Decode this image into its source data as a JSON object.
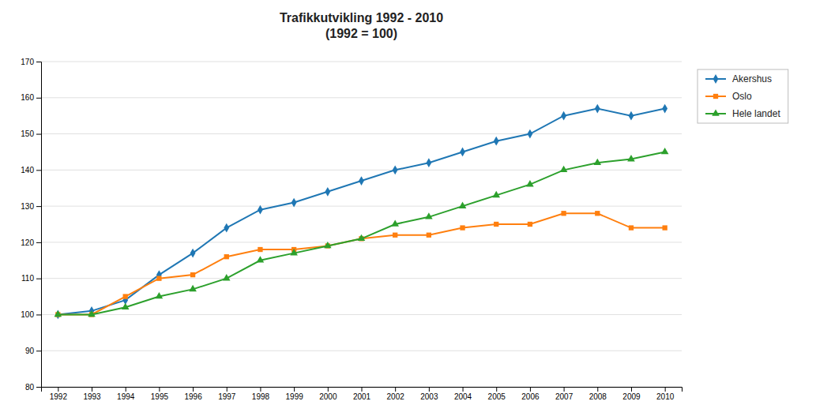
{
  "chart_data": {
    "type": "line",
    "title": "Trafikkutvikling 1992 - 2010\n(1992 = 100)",
    "x": [
      1992,
      1993,
      1994,
      1995,
      1996,
      1997,
      1998,
      1999,
      2000,
      2001,
      2002,
      2003,
      2004,
      2005,
      2006,
      2007,
      2008,
      2009,
      2010
    ],
    "series": [
      {
        "name": "Akershus",
        "marker": "diamond",
        "values": [
          100,
          101,
          104,
          111,
          117,
          124,
          129,
          131,
          134,
          137,
          140,
          142,
          145,
          148,
          150,
          155,
          157,
          155,
          157
        ]
      },
      {
        "name": "Oslo",
        "marker": "square",
        "values": [
          100,
          100,
          105,
          110,
          111,
          116,
          118,
          118,
          119,
          121,
          122,
          122,
          124,
          125,
          125,
          128,
          128,
          124,
          124
        ]
      },
      {
        "name": "Hele landet",
        "marker": "triangle",
        "values": [
          100,
          100,
          102,
          105,
          107,
          110,
          115,
          117,
          119,
          121,
          125,
          127,
          130,
          133,
          136,
          140,
          142,
          143,
          145
        ]
      }
    ],
    "xlim": [
      1991.5,
      2010.5
    ],
    "xticks": [
      1992,
      1993,
      1994,
      1995,
      1996,
      1997,
      1998,
      1999,
      2000,
      2001,
      2002,
      2003,
      2004,
      2005,
      2006,
      2007,
      2008,
      2009,
      2010
    ],
    "ylim": [
      80,
      170
    ],
    "yticks": [
      80,
      90,
      100,
      110,
      120,
      130,
      140,
      150,
      160,
      170
    ],
    "grid": "y",
    "legend": "right"
  }
}
